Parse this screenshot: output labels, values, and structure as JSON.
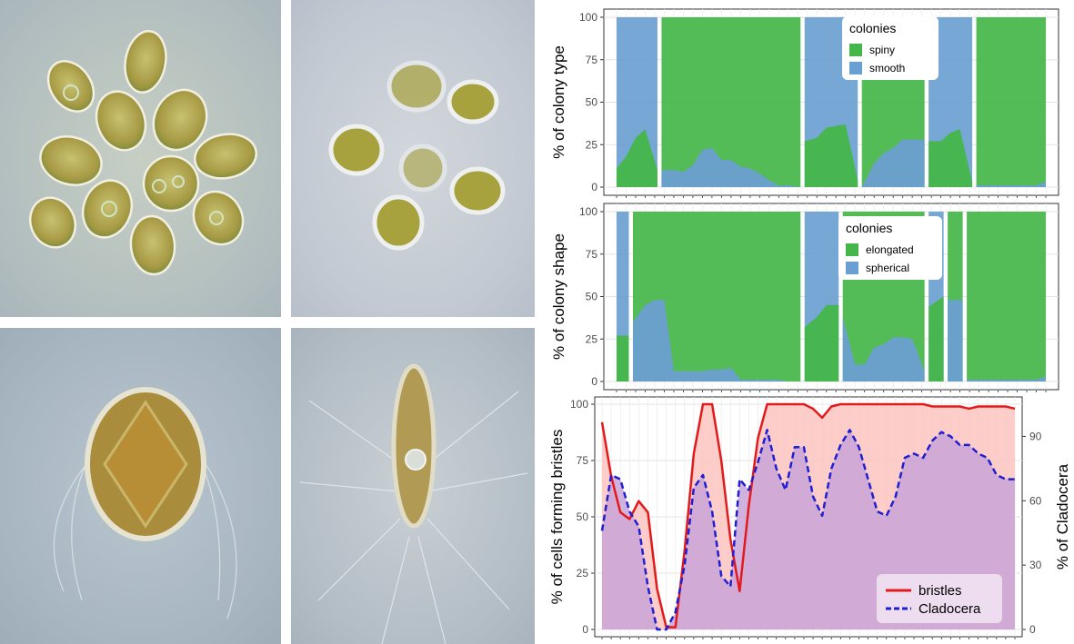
{
  "chart_data": [
    {
      "type": "area",
      "stacked_percent": true,
      "ylabel": "% of colony type",
      "ylim": [
        0,
        100
      ],
      "yticks": [
        0,
        25,
        50,
        75,
        100
      ],
      "legend_title": "colonies",
      "legend_position": "top-right",
      "grid": true,
      "segments": [
        {
          "x": [
            0,
            1,
            2,
            3,
            4
          ],
          "series": [
            {
              "name": "spiny",
              "color": "#45b649",
              "values": [
                11,
                18,
                29,
                34,
                10
              ]
            },
            {
              "name": "smooth",
              "color": "#6a9fd1",
              "values": [
                89,
                82,
                71,
                66,
                90
              ]
            }
          ]
        },
        {
          "x": [
            5,
            6,
            7,
            8,
            9,
            10,
            11,
            12,
            13,
            14,
            15,
            16,
            17,
            18,
            19
          ],
          "series": [
            {
              "name": "smooth",
              "color": "#6a9fd1",
              "values": [
                10,
                10,
                9,
                13,
                22,
                23,
                16,
                16,
                12,
                11,
                8,
                4,
                1,
                1,
                0
              ]
            },
            {
              "name": "spiny",
              "color": "#45b649",
              "values": [
                90,
                90,
                91,
                87,
                78,
                77,
                84,
                84,
                88,
                89,
                92,
                96,
                99,
                99,
                100
              ]
            }
          ]
        },
        {
          "x": [
            20,
            21,
            22,
            23,
            24,
            25
          ],
          "series": [
            {
              "name": "spiny",
              "color": "#45b649",
              "values": [
                27,
                29,
                35,
                36,
                37,
                4
              ]
            },
            {
              "name": "smooth",
              "color": "#6a9fd1",
              "values": [
                73,
                71,
                65,
                64,
                63,
                96
              ]
            }
          ]
        },
        {
          "x": [
            26,
            27,
            28,
            29,
            30,
            31,
            32
          ],
          "series": [
            {
              "name": "smooth",
              "color": "#6a9fd1",
              "values": [
                0,
                14,
                20,
                23,
                28,
                28,
                28
              ]
            },
            {
              "name": "spiny",
              "color": "#45b649",
              "values": [
                100,
                86,
                80,
                77,
                72,
                72,
                72
              ]
            }
          ]
        },
        {
          "x": [
            33,
            34,
            35,
            36,
            37
          ],
          "series": [
            {
              "name": "spiny",
              "color": "#45b649",
              "values": [
                27,
                27,
                32,
                34,
                3
              ]
            },
            {
              "name": "smooth",
              "color": "#6a9fd1",
              "values": [
                73,
                73,
                68,
                66,
                97
              ]
            }
          ]
        },
        {
          "x": [
            38,
            39,
            40,
            41,
            42,
            43,
            44,
            45
          ],
          "series": [
            {
              "name": "smooth",
              "color": "#6a9fd1",
              "values": [
                1,
                1,
                1,
                1,
                1,
                1,
                1,
                3
              ]
            },
            {
              "name": "spiny",
              "color": "#45b649",
              "values": [
                99,
                99,
                99,
                99,
                99,
                99,
                99,
                97
              ]
            }
          ]
        }
      ],
      "legend": [
        {
          "name": "spiny",
          "color": "#45b649"
        },
        {
          "name": "smooth",
          "color": "#6a9fd1"
        }
      ]
    },
    {
      "type": "area",
      "stacked_percent": true,
      "ylabel": "% of colony shape",
      "ylim": [
        0,
        100
      ],
      "yticks": [
        0,
        25,
        50,
        75,
        100
      ],
      "legend_title": "colonies",
      "legend_position": "top-right",
      "grid": true,
      "segments": [
        {
          "x": [
            0,
            1
          ],
          "series": [
            {
              "name": "elongated",
              "color": "#45b649",
              "values": [
                27,
                27
              ]
            },
            {
              "name": "spherical",
              "color": "#6a9fd1",
              "values": [
                73,
                73
              ]
            }
          ]
        },
        {
          "x": [
            2,
            3,
            4,
            5,
            6,
            7,
            8,
            9,
            10,
            11,
            12,
            13,
            14,
            15,
            16,
            17,
            18,
            19
          ],
          "series": [
            {
              "name": "spherical",
              "color": "#6a9fd1",
              "values": [
                35,
                45,
                48,
                48,
                6,
                6,
                6,
                6,
                7,
                7,
                8,
                1,
                1,
                1,
                1,
                1,
                0,
                0
              ]
            },
            {
              "name": "elongated",
              "color": "#45b649",
              "values": [
                65,
                55,
                52,
                52,
                94,
                94,
                94,
                94,
                93,
                93,
                92,
                99,
                99,
                99,
                99,
                99,
                100,
                100
              ]
            }
          ]
        },
        {
          "x": [
            20,
            21,
            22,
            23
          ],
          "series": [
            {
              "name": "elongated",
              "color": "#45b649",
              "values": [
                32,
                38,
                45,
                45
              ]
            },
            {
              "name": "spherical",
              "color": "#6a9fd1",
              "values": [
                68,
                62,
                55,
                55
              ]
            }
          ]
        },
        {
          "x": [
            24,
            25,
            26,
            27,
            28,
            29,
            30,
            31,
            32
          ],
          "series": [
            {
              "name": "spherical",
              "color": "#6a9fd1",
              "values": [
                38,
                10,
                10,
                20,
                22,
                26,
                26,
                25,
                6
              ]
            },
            {
              "name": "elongated",
              "color": "#45b649",
              "values": [
                62,
                90,
                90,
                80,
                78,
                74,
                74,
                75,
                94
              ]
            }
          ]
        },
        {
          "x": [
            33,
            34
          ],
          "series": [
            {
              "name": "elongated",
              "color": "#45b649",
              "values": [
                44,
                50
              ]
            },
            {
              "name": "spherical",
              "color": "#6a9fd1",
              "values": [
                56,
                50
              ]
            }
          ]
        },
        {
          "x": [
            35,
            36
          ],
          "series": [
            {
              "name": "spherical",
              "color": "#6a9fd1",
              "values": [
                48,
                48
              ]
            },
            {
              "name": "elongated",
              "color": "#45b649",
              "values": [
                52,
                52
              ]
            }
          ]
        },
        {
          "x": [
            37,
            38,
            39,
            40,
            41,
            42,
            43,
            44,
            45
          ],
          "series": [
            {
              "name": "spherical",
              "color": "#6a9fd1",
              "values": [
                1,
                1,
                1,
                1,
                1,
                1,
                1,
                1,
                3
              ]
            },
            {
              "name": "elongated",
              "color": "#45b649",
              "values": [
                99,
                99,
                99,
                99,
                99,
                99,
                99,
                99,
                97
              ]
            }
          ]
        }
      ],
      "legend": [
        {
          "name": "elongated",
          "color": "#45b649"
        },
        {
          "name": "spherical",
          "color": "#6a9fd1"
        }
      ]
    },
    {
      "type": "line",
      "dual_axis": true,
      "ylabel": "% of cells forming bristles",
      "ylabel_right": "% of Cladocera",
      "ylim": [
        0,
        100
      ],
      "yticks": [
        0,
        25,
        50,
        75,
        100
      ],
      "ylim_right": [
        0,
        105
      ],
      "yticks_right": [
        0,
        30,
        60,
        90
      ],
      "grid": true,
      "legend_position": "bottom-right",
      "x": [
        0,
        1,
        2,
        3,
        4,
        5,
        6,
        7,
        8,
        9,
        10,
        11,
        12,
        13,
        14,
        15,
        16,
        17,
        18,
        19,
        20,
        21,
        22,
        23,
        24,
        25,
        26,
        27,
        28,
        29,
        30,
        31,
        32,
        33,
        34,
        35,
        36,
        37,
        38,
        39,
        40,
        41,
        42,
        43,
        44,
        45
      ],
      "series": [
        {
          "name": "bristles",
          "axis": "left",
          "color": "#e31a1c",
          "fill": "#fbc4bf",
          "dash": "solid",
          "values": [
            92,
            68,
            52,
            49,
            57,
            52,
            18,
            1,
            1,
            35,
            78,
            100,
            100,
            75,
            40,
            17,
            55,
            85,
            100,
            100,
            100,
            100,
            100,
            98,
            94,
            99,
            100,
            100,
            100,
            100,
            100,
            100,
            100,
            100,
            100,
            100,
            99,
            99,
            99,
            99,
            98,
            99,
            99,
            99,
            99,
            98
          ]
        },
        {
          "name": "Cladocera",
          "axis": "right",
          "color": "#1f1fd1",
          "fill": "#c9a3d8",
          "dash": "dashed",
          "values": [
            46,
            72,
            70,
            55,
            48,
            20,
            0,
            0,
            8,
            30,
            66,
            72,
            55,
            25,
            20,
            70,
            65,
            78,
            93,
            75,
            65,
            85,
            85,
            62,
            53,
            75,
            86,
            93,
            85,
            70,
            55,
            53,
            62,
            80,
            82,
            80,
            88,
            92,
            90,
            86,
            86,
            82,
            80,
            72,
            70,
            70
          ]
        }
      ],
      "legend": [
        {
          "name": "bristles",
          "color": "#e31a1c",
          "dash": "solid"
        },
        {
          "name": "Cladocera",
          "color": "#1f1fd1",
          "dash": "dashed"
        }
      ]
    }
  ]
}
